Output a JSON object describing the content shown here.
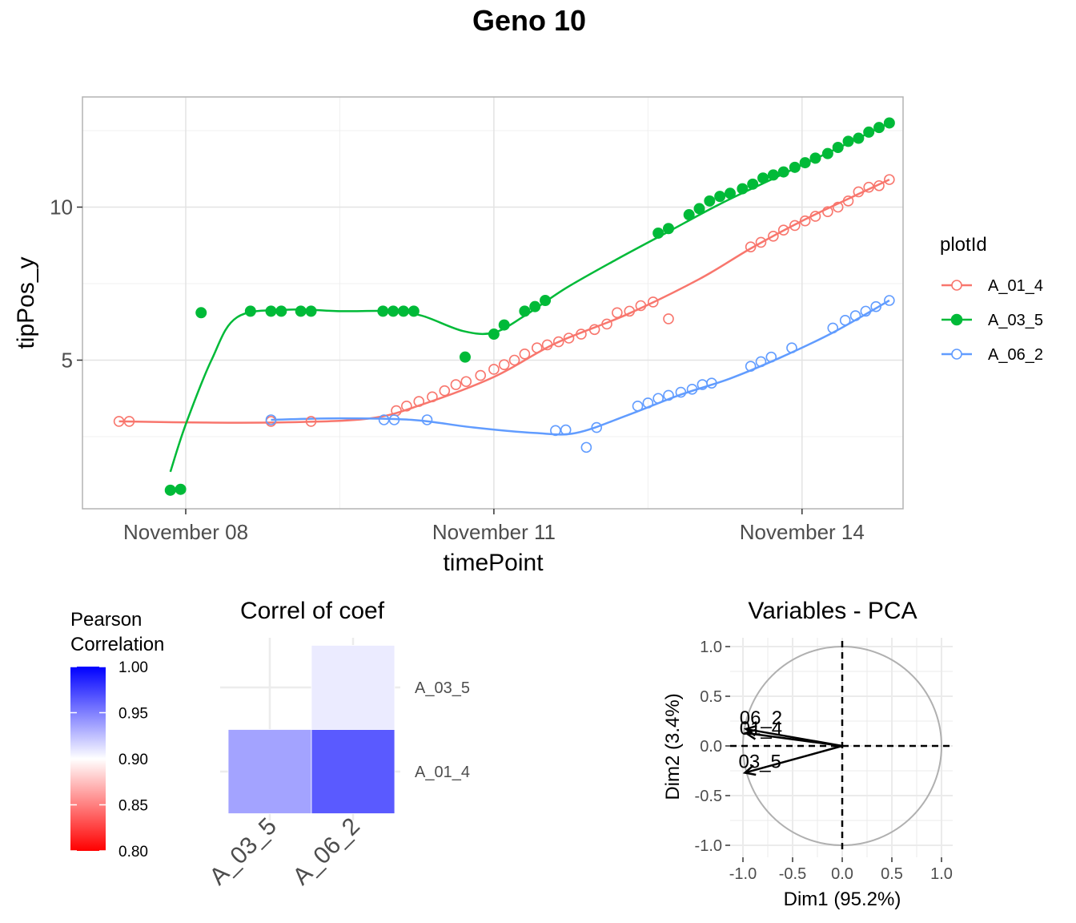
{
  "title": "Geno 10",
  "chart_data": [
    {
      "type": "scatter",
      "name": "main-growth",
      "xlabel": "timePoint",
      "ylabel": "tipPos_y",
      "x_axis": {
        "type": "date",
        "ticks": [
          "November 08",
          "November 11",
          "November 14"
        ],
        "tick_values": [
          0,
          3,
          6
        ]
      },
      "y_axis": {
        "ticks": [
          "5",
          "10"
        ],
        "tick_values": [
          5,
          10
        ],
        "range": [
          1.0,
          13.5
        ]
      },
      "grid": true,
      "legend": {
        "title": "plotId",
        "position": "right"
      },
      "series": [
        {
          "name": "A_01_4",
          "color": "#F8766D",
          "marker": "open-circle",
          "points": [
            [
              -0.65,
              3.0
            ],
            [
              -0.55,
              3.0
            ],
            [
              0.83,
              3.0
            ],
            [
              1.22,
              3.0
            ],
            [
              2.05,
              3.35
            ],
            [
              2.15,
              3.5
            ],
            [
              2.27,
              3.65
            ],
            [
              2.4,
              3.8
            ],
            [
              2.52,
              4.0
            ],
            [
              2.63,
              4.2
            ],
            [
              2.73,
              4.3
            ],
            [
              2.87,
              4.5
            ],
            [
              3.0,
              4.7
            ],
            [
              3.1,
              4.85
            ],
            [
              3.2,
              5.0
            ],
            [
              3.3,
              5.2
            ],
            [
              3.42,
              5.4
            ],
            [
              3.52,
              5.5
            ],
            [
              3.63,
              5.6
            ],
            [
              3.73,
              5.72
            ],
            [
              3.85,
              5.85
            ],
            [
              3.98,
              6.0
            ],
            [
              4.1,
              6.18
            ],
            [
              4.2,
              6.55
            ],
            [
              4.32,
              6.6
            ],
            [
              4.43,
              6.78
            ],
            [
              4.55,
              6.9
            ],
            [
              4.7,
              6.35
            ],
            [
              5.5,
              8.7
            ],
            [
              5.6,
              8.85
            ],
            [
              5.72,
              9.05
            ],
            [
              5.82,
              9.25
            ],
            [
              5.93,
              9.4
            ],
            [
              6.03,
              9.55
            ],
            [
              6.13,
              9.7
            ],
            [
              6.25,
              9.85
            ],
            [
              6.35,
              10.0
            ],
            [
              6.45,
              10.2
            ],
            [
              6.55,
              10.5
            ],
            [
              6.65,
              10.65
            ],
            [
              6.75,
              10.7
            ],
            [
              6.85,
              10.9
            ]
          ],
          "trend": [
            [
              -0.65,
              3.0
            ],
            [
              0.2,
              2.96
            ],
            [
              1.0,
              2.97
            ],
            [
              1.8,
              3.1
            ],
            [
              2.3,
              3.55
            ],
            [
              3.0,
              4.45
            ],
            [
              3.6,
              5.55
            ],
            [
              4.3,
              6.5
            ],
            [
              5.0,
              7.65
            ],
            [
              5.5,
              8.65
            ],
            [
              6.0,
              9.55
            ],
            [
              6.5,
              10.35
            ],
            [
              6.85,
              10.9
            ]
          ]
        },
        {
          "name": "A_03_5",
          "color": "#00BA38",
          "marker": "filled-circle",
          "points": [
            [
              -0.15,
              0.75
            ],
            [
              -0.05,
              0.78
            ],
            [
              0.15,
              6.55
            ],
            [
              0.63,
              6.6
            ],
            [
              0.83,
              6.6
            ],
            [
              0.93,
              6.6
            ],
            [
              1.12,
              6.6
            ],
            [
              1.22,
              6.6
            ],
            [
              1.92,
              6.6
            ],
            [
              2.02,
              6.6
            ],
            [
              2.12,
              6.6
            ],
            [
              2.22,
              6.6
            ],
            [
              2.72,
              5.1
            ],
            [
              3.0,
              5.85
            ],
            [
              3.1,
              6.15
            ],
            [
              3.3,
              6.6
            ],
            [
              3.4,
              6.75
            ],
            [
              3.5,
              6.95
            ],
            [
              4.6,
              9.15
            ],
            [
              4.7,
              9.3
            ],
            [
              4.9,
              9.75
            ],
            [
              5.0,
              9.95
            ],
            [
              5.1,
              10.2
            ],
            [
              5.2,
              10.35
            ],
            [
              5.3,
              10.45
            ],
            [
              5.42,
              10.6
            ],
            [
              5.52,
              10.75
            ],
            [
              5.62,
              10.95
            ],
            [
              5.72,
              11.05
            ],
            [
              5.82,
              11.15
            ],
            [
              5.93,
              11.3
            ],
            [
              6.03,
              11.45
            ],
            [
              6.13,
              11.6
            ],
            [
              6.25,
              11.75
            ],
            [
              6.35,
              11.95
            ],
            [
              6.45,
              12.15
            ],
            [
              6.55,
              12.25
            ],
            [
              6.65,
              12.45
            ],
            [
              6.75,
              12.6
            ],
            [
              6.85,
              12.75
            ]
          ],
          "trend": [
            [
              -0.15,
              1.35
            ],
            [
              0.0,
              2.9
            ],
            [
              0.25,
              5.0
            ],
            [
              0.5,
              6.4
            ],
            [
              1.0,
              6.65
            ],
            [
              1.5,
              6.6
            ],
            [
              2.0,
              6.6
            ],
            [
              2.3,
              6.45
            ],
            [
              2.7,
              5.95
            ],
            [
              3.0,
              5.9
            ],
            [
              3.3,
              6.45
            ],
            [
              3.7,
              7.35
            ],
            [
              4.2,
              8.3
            ],
            [
              4.7,
              9.2
            ],
            [
              5.2,
              10.1
            ],
            [
              5.7,
              10.9
            ],
            [
              6.3,
              11.85
            ],
            [
              6.85,
              12.75
            ]
          ]
        },
        {
          "name": "A_06_2",
          "color": "#619CFF",
          "marker": "open-circle",
          "points": [
            [
              0.83,
              3.05
            ],
            [
              1.93,
              3.05
            ],
            [
              2.03,
              3.05
            ],
            [
              2.35,
              3.05
            ],
            [
              3.6,
              2.7
            ],
            [
              3.7,
              2.72
            ],
            [
              3.9,
              2.15
            ],
            [
              4.0,
              2.8
            ],
            [
              4.4,
              3.5
            ],
            [
              4.5,
              3.6
            ],
            [
              4.6,
              3.75
            ],
            [
              4.7,
              3.85
            ],
            [
              4.82,
              3.95
            ],
            [
              4.93,
              4.05
            ],
            [
              5.03,
              4.2
            ],
            [
              5.12,
              4.25
            ],
            [
              5.5,
              4.8
            ],
            [
              5.6,
              4.95
            ],
            [
              5.7,
              5.1
            ],
            [
              5.9,
              5.4
            ],
            [
              6.3,
              6.05
            ],
            [
              6.42,
              6.3
            ],
            [
              6.52,
              6.45
            ],
            [
              6.62,
              6.6
            ],
            [
              6.72,
              6.75
            ],
            [
              6.85,
              6.95
            ]
          ],
          "trend": [
            [
              0.83,
              3.05
            ],
            [
              1.5,
              3.1
            ],
            [
              2.2,
              3.05
            ],
            [
              2.8,
              2.8
            ],
            [
              3.4,
              2.62
            ],
            [
              3.8,
              2.62
            ],
            [
              4.3,
              3.2
            ],
            [
              4.8,
              3.85
            ],
            [
              5.3,
              4.4
            ],
            [
              5.8,
              5.1
            ],
            [
              6.3,
              5.9
            ],
            [
              6.85,
              6.95
            ]
          ]
        }
      ]
    },
    {
      "type": "heatmap",
      "name": "correl-of-coef",
      "title": "Correl of coef",
      "x_categories": [
        "A_03_5",
        "A_06_2"
      ],
      "y_categories": [
        "A_01_4",
        "A_03_5"
      ],
      "cells": [
        {
          "x": "A_06_2",
          "y": "A_03_5",
          "value": 0.905
        },
        {
          "x": "A_03_5",
          "y": "A_01_4",
          "value": 0.93
        },
        {
          "x": "A_06_2",
          "y": "A_01_4",
          "value": 0.96
        }
      ],
      "colorbar": {
        "title": [
          "Pearson",
          "Correlation"
        ],
        "ticks": [
          "1.00",
          "0.95",
          "0.90",
          "0.85",
          "0.80"
        ],
        "range": [
          0.8,
          1.0
        ],
        "low_color": "#FF0000",
        "mid_color": "#FFFFFF",
        "high_color": "#0000FF"
      }
    },
    {
      "type": "scatter",
      "name": "variables-pca",
      "title": "Variables - PCA",
      "xlabel": "Dim1 (95.2%)",
      "ylabel": "Dim2 (3.4%)",
      "xlim": [
        -1.0,
        1.0
      ],
      "ylim": [
        -1.0,
        1.0
      ],
      "ticks": [
        "-1.0",
        "-0.5",
        "0.0",
        "0.5",
        "1.0"
      ],
      "tick_values": [
        -1.0,
        -0.5,
        0.0,
        0.5,
        1.0
      ],
      "vectors": [
        {
          "label": "06_2",
          "x": -0.97,
          "y": 0.17
        },
        {
          "label": "01_4",
          "x": -0.97,
          "y": 0.13
        },
        {
          "label": "03_5",
          "x": -0.98,
          "y": -0.27
        }
      ]
    }
  ]
}
